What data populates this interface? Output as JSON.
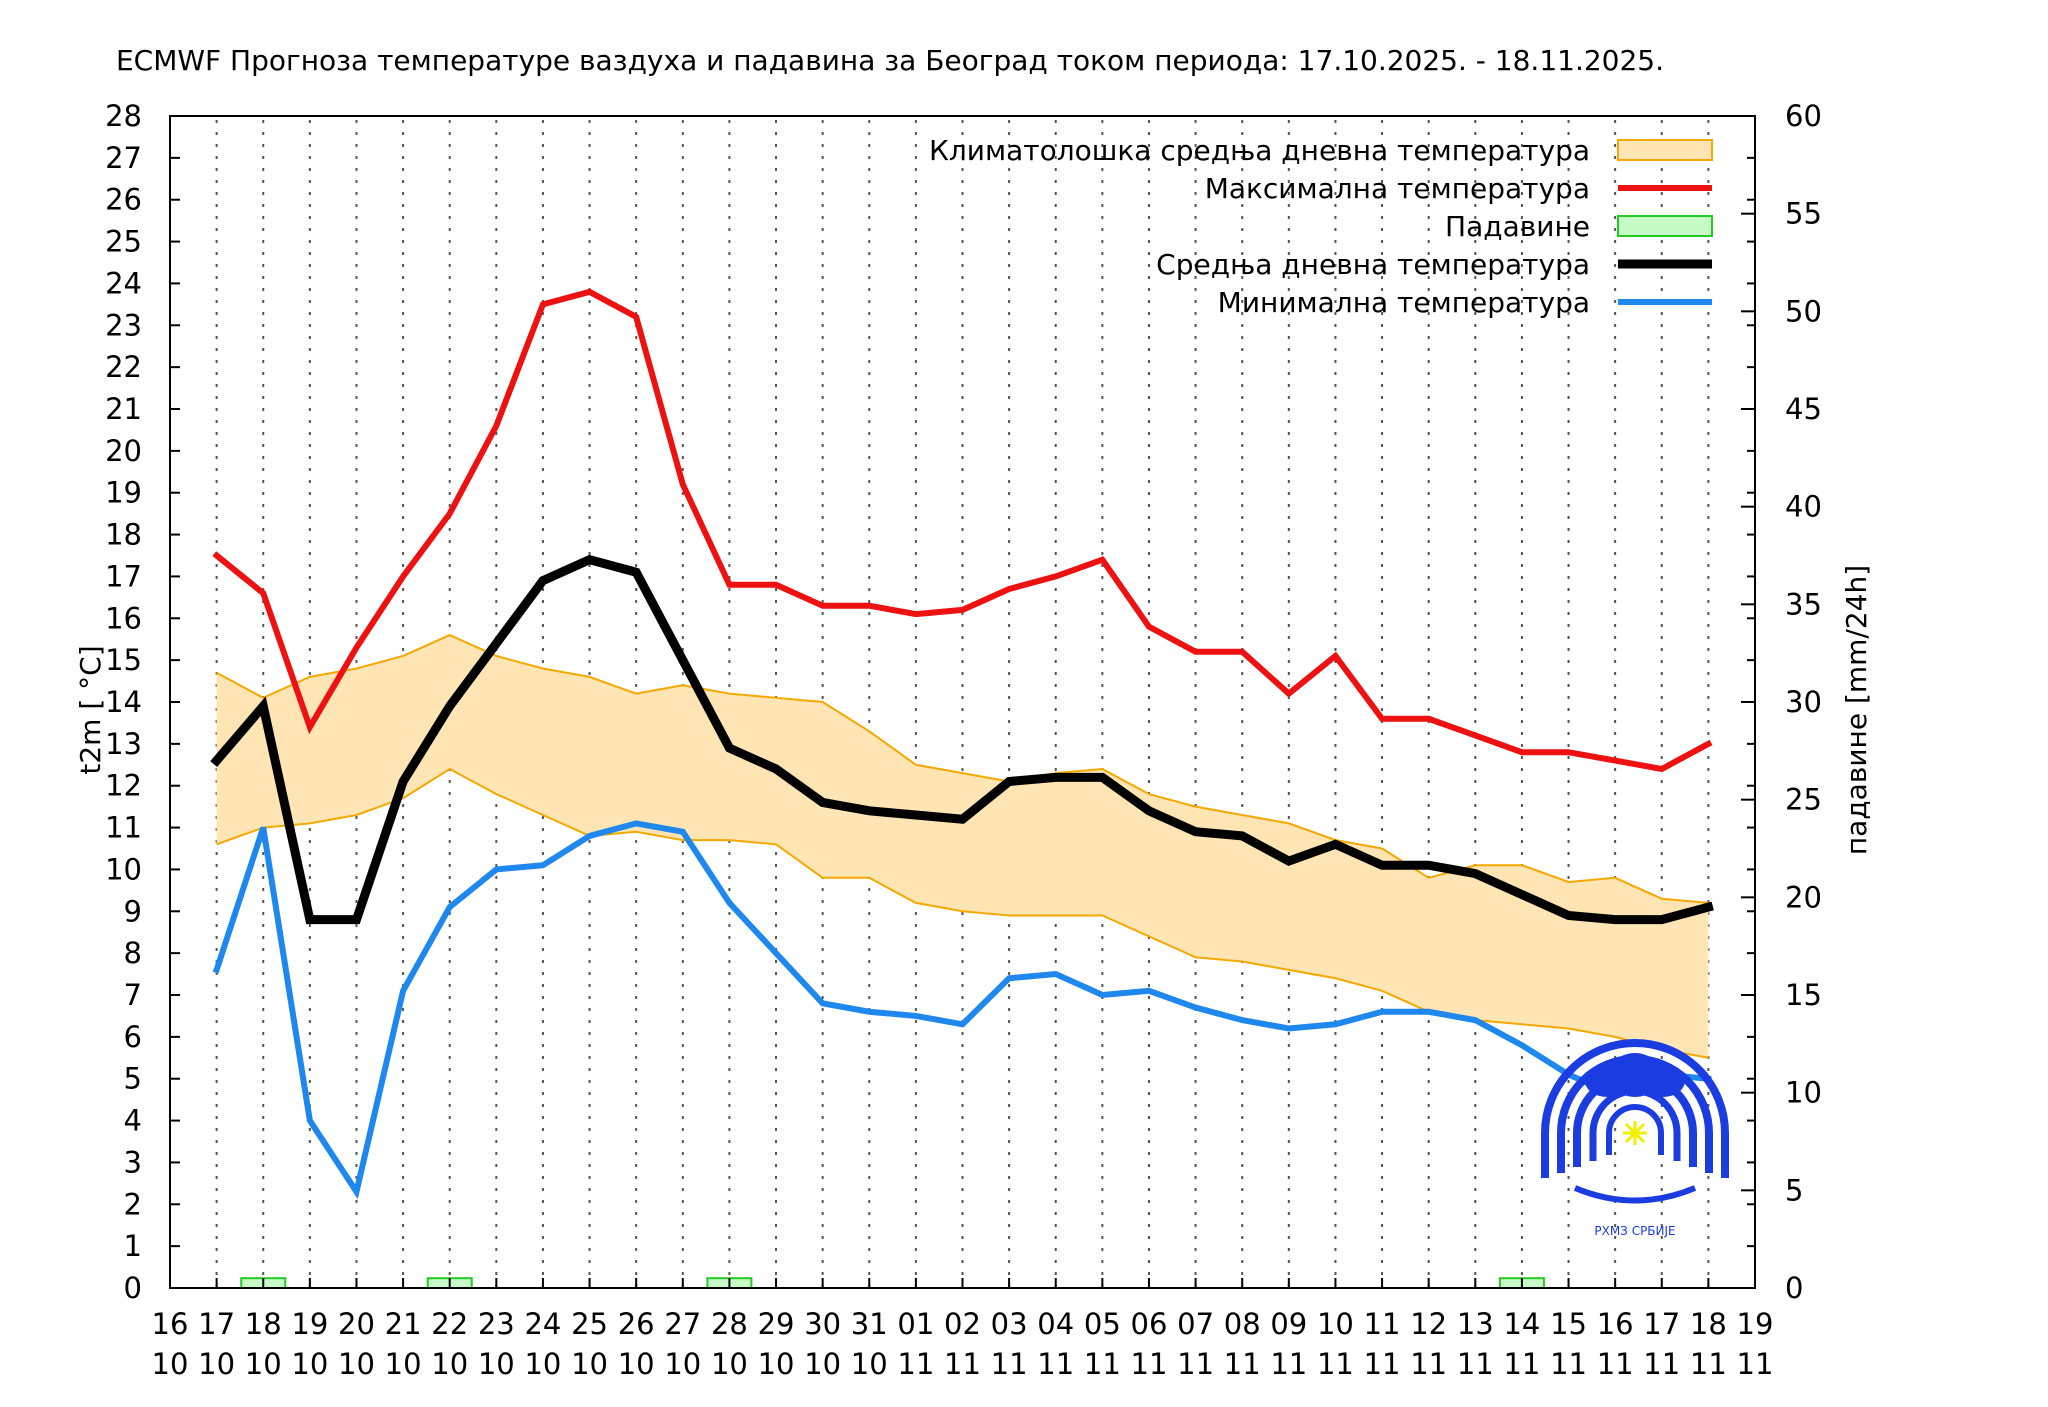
{
  "chart_data": {
    "type": "line",
    "title": "ECMWF Прогноза температуре ваздуха и падавина за Београд током периода: 17.10.2025. - 18.11.2025.",
    "ylabel": "t2m [ °C]",
    "y2label": "падавине [mm/24h]",
    "ylim": [
      0,
      28
    ],
    "y2lim": [
      0,
      60
    ],
    "yticks": [
      0,
      1,
      2,
      3,
      4,
      5,
      6,
      7,
      8,
      9,
      10,
      11,
      12,
      13,
      14,
      15,
      16,
      17,
      18,
      19,
      20,
      21,
      22,
      23,
      24,
      25,
      26,
      27,
      28
    ],
    "y2ticks": [
      0,
      5,
      10,
      15,
      20,
      25,
      30,
      35,
      40,
      45,
      50,
      55,
      60
    ],
    "x_days": [
      "16",
      "17",
      "18",
      "19",
      "20",
      "21",
      "22",
      "23",
      "24",
      "25",
      "26",
      "27",
      "28",
      "29",
      "30",
      "31",
      "01",
      "02",
      "03",
      "04",
      "05",
      "06",
      "07",
      "08",
      "09",
      "10",
      "11",
      "12",
      "13",
      "14",
      "15",
      "16",
      "17",
      "18",
      "19"
    ],
    "x_months": [
      "10",
      "10",
      "10",
      "10",
      "10",
      "10",
      "10",
      "10",
      "10",
      "10",
      "10",
      "10",
      "10",
      "10",
      "10",
      "10",
      "11",
      "11",
      "11",
      "11",
      "11",
      "11",
      "11",
      "11",
      "11",
      "11",
      "11",
      "11",
      "11",
      "11",
      "11",
      "11",
      "11",
      "11",
      "11"
    ],
    "legend": [
      {
        "label": "Климатолошка средња дневна температура",
        "color": "#ffe5b4",
        "border": "#f5a800",
        "kind": "box"
      },
      {
        "label": "Максимална температура",
        "color": "#ee1111",
        "kind": "line"
      },
      {
        "label": "Падавине",
        "color": "#c8fac8",
        "border": "#22cc22",
        "kind": "box"
      },
      {
        "label": "Средња дневна температура",
        "color": "#000000",
        "kind": "line"
      },
      {
        "label": "Минимална температура",
        "color": "#1e88ee",
        "kind": "line"
      }
    ],
    "series": [
      {
        "name": "Максимална температура",
        "color": "#ee1111",
        "values": [
          17.5,
          16.6,
          13.4,
          15.3,
          17.0,
          18.5,
          20.6,
          23.5,
          23.8,
          23.2,
          19.2,
          16.8,
          16.8,
          16.3,
          16.3,
          16.1,
          16.2,
          16.7,
          17.0,
          17.4,
          15.8,
          15.2,
          15.2,
          14.2,
          15.1,
          13.6,
          13.6,
          13.2,
          12.8,
          12.8,
          12.6,
          12.4,
          13.0
        ]
      },
      {
        "name": "Средња дневна температура",
        "color": "#000000",
        "values": [
          12.6,
          13.9,
          8.8,
          8.8,
          12.1,
          13.9,
          15.4,
          16.9,
          17.4,
          17.1,
          15.0,
          12.9,
          12.4,
          11.6,
          11.4,
          11.3,
          11.2,
          12.1,
          12.2,
          12.2,
          11.4,
          10.9,
          10.8,
          10.2,
          10.6,
          10.1,
          10.1,
          9.9,
          9.4,
          8.9,
          8.8,
          8.8,
          9.1
        ]
      },
      {
        "name": "Минимална температура",
        "color": "#1e88ee",
        "values": [
          7.6,
          11.0,
          4.0,
          2.3,
          7.1,
          9.1,
          10.0,
          10.1,
          10.8,
          11.1,
          10.9,
          9.2,
          8.0,
          6.8,
          6.6,
          6.5,
          6.3,
          7.4,
          7.5,
          7.0,
          7.1,
          6.7,
          6.4,
          6.2,
          6.3,
          6.6,
          6.6,
          6.4,
          5.8,
          5.1,
          4.6,
          5.1,
          5.0
        ]
      },
      {
        "name": "Климатолошка горња граница",
        "color": "#f5a800",
        "values": [
          14.7,
          14.1,
          14.6,
          14.8,
          15.1,
          15.6,
          15.1,
          14.8,
          14.6,
          14.2,
          14.4,
          14.2,
          14.1,
          14.0,
          13.3,
          12.5,
          12.3,
          12.1,
          12.3,
          12.4,
          11.8,
          11.5,
          11.3,
          11.1,
          10.7,
          10.5,
          9.8,
          10.1,
          10.1,
          9.7,
          9.8,
          9.3,
          9.2
        ]
      },
      {
        "name": "Климатолошка доња граница",
        "color": "#f5a800",
        "values": [
          10.6,
          11.0,
          11.1,
          11.3,
          11.7,
          12.4,
          11.8,
          11.3,
          10.8,
          10.9,
          10.7,
          10.7,
          10.6,
          9.8,
          9.8,
          9.2,
          9.0,
          8.9,
          8.9,
          8.9,
          8.4,
          7.9,
          7.8,
          7.6,
          7.4,
          7.1,
          6.6,
          6.4,
          6.3,
          6.2,
          6.0,
          5.7,
          5.5
        ]
      },
      {
        "name": "Падавине",
        "color": "#22cc22",
        "axis": "y2",
        "values": [
          0,
          0.4,
          0,
          0,
          0,
          0.4,
          0,
          0,
          0,
          0,
          0,
          0.4,
          0,
          0,
          0,
          0,
          0,
          0,
          0,
          0,
          0,
          0,
          0,
          0,
          0,
          0,
          0,
          0,
          0.4,
          0,
          0,
          0,
          0
        ]
      }
    ]
  },
  "logo": {
    "name": "rhmz-logo",
    "text": "РХМЗ СРБИЈЕ"
  }
}
